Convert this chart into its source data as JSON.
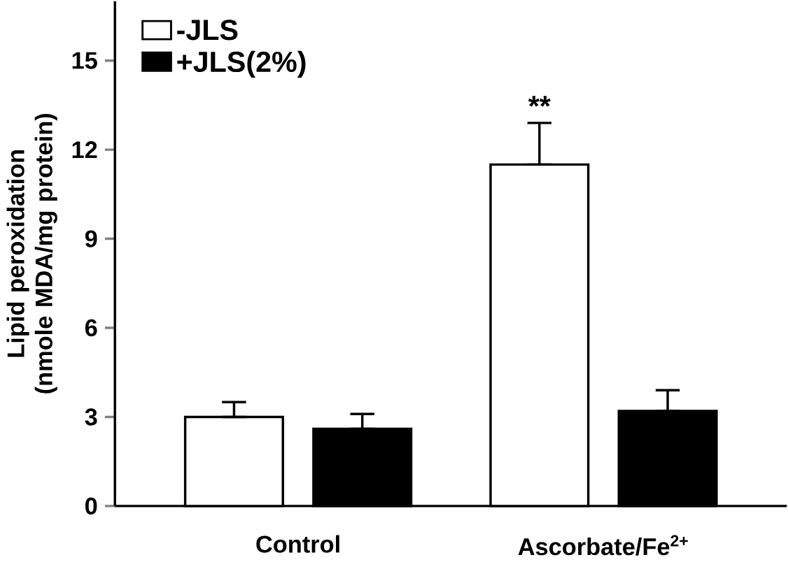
{
  "chart_data": {
    "type": "bar",
    "ylabel": "Lipid peroxidation (nmole MDA/mg protein)",
    "categories": [
      "Control",
      "Ascorbate/Fe$^{2+}$"
    ],
    "series": [
      {
        "name": "-JLS",
        "color": "#ffffff",
        "values": [
          3.0,
          11.5
        ],
        "errors": [
          [
            3.0,
            3.5
          ],
          [
            11.5,
            12.9
          ]
        ]
      },
      {
        "name": "+JLS(2%)",
        "color": "#000000",
        "values": [
          2.6,
          3.2
        ],
        "errors": [
          [
            2.6,
            3.1
          ],
          [
            3.2,
            3.9
          ]
        ]
      }
    ],
    "ylim": [
      0,
      17
    ],
    "yticks": [
      0,
      3,
      6,
      9,
      12,
      15
    ],
    "legend": "top left",
    "annotations": [
      "**"
    ]
  }
}
